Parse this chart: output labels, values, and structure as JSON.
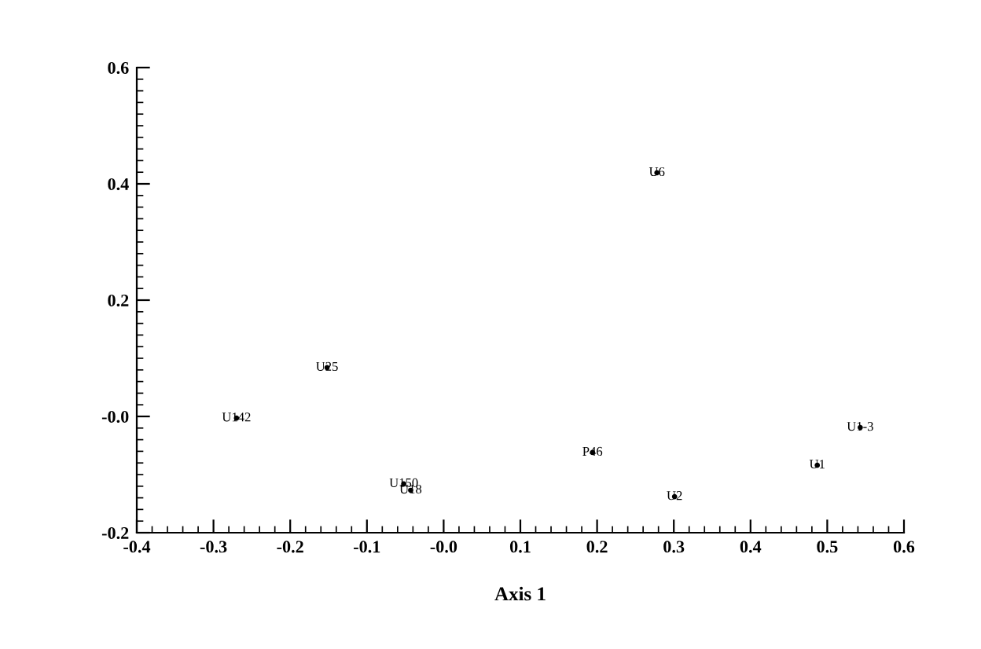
{
  "chart_data": {
    "type": "scatter",
    "xlabel": "Axis 1",
    "marker": "none",
    "grid": false,
    "legend": false,
    "series": [
      {
        "color": "#000000",
        "x": [
          0.278,
          -0.152,
          -0.27,
          0.543,
          0.194,
          0.487,
          -0.052,
          -0.043,
          0.301
        ],
        "values": [
          0.419,
          0.084,
          -0.003,
          -0.019,
          -0.062,
          -0.084,
          -0.116,
          -0.127,
          -0.138
        ],
        "value_labels": [
          "U6",
          "U25",
          "U142",
          "U1-3",
          "P46",
          "U1",
          "U150",
          "U18",
          "U2"
        ]
      }
    ],
    "xlim": [
      -0.4,
      0.6
    ],
    "ylim": [
      -0.2,
      0.6
    ],
    "xticks": [
      -0.4,
      -0.3,
      -0.2,
      -0.1,
      {
        "value": 0,
        "label": "-0.0"
      },
      0.1,
      0.2,
      0.3,
      0.4,
      0.5,
      0.6
    ],
    "yticks": [
      -0.2,
      {
        "value": 0,
        "label": "-0.0"
      },
      0.2,
      0.4,
      0.6
    ]
  }
}
